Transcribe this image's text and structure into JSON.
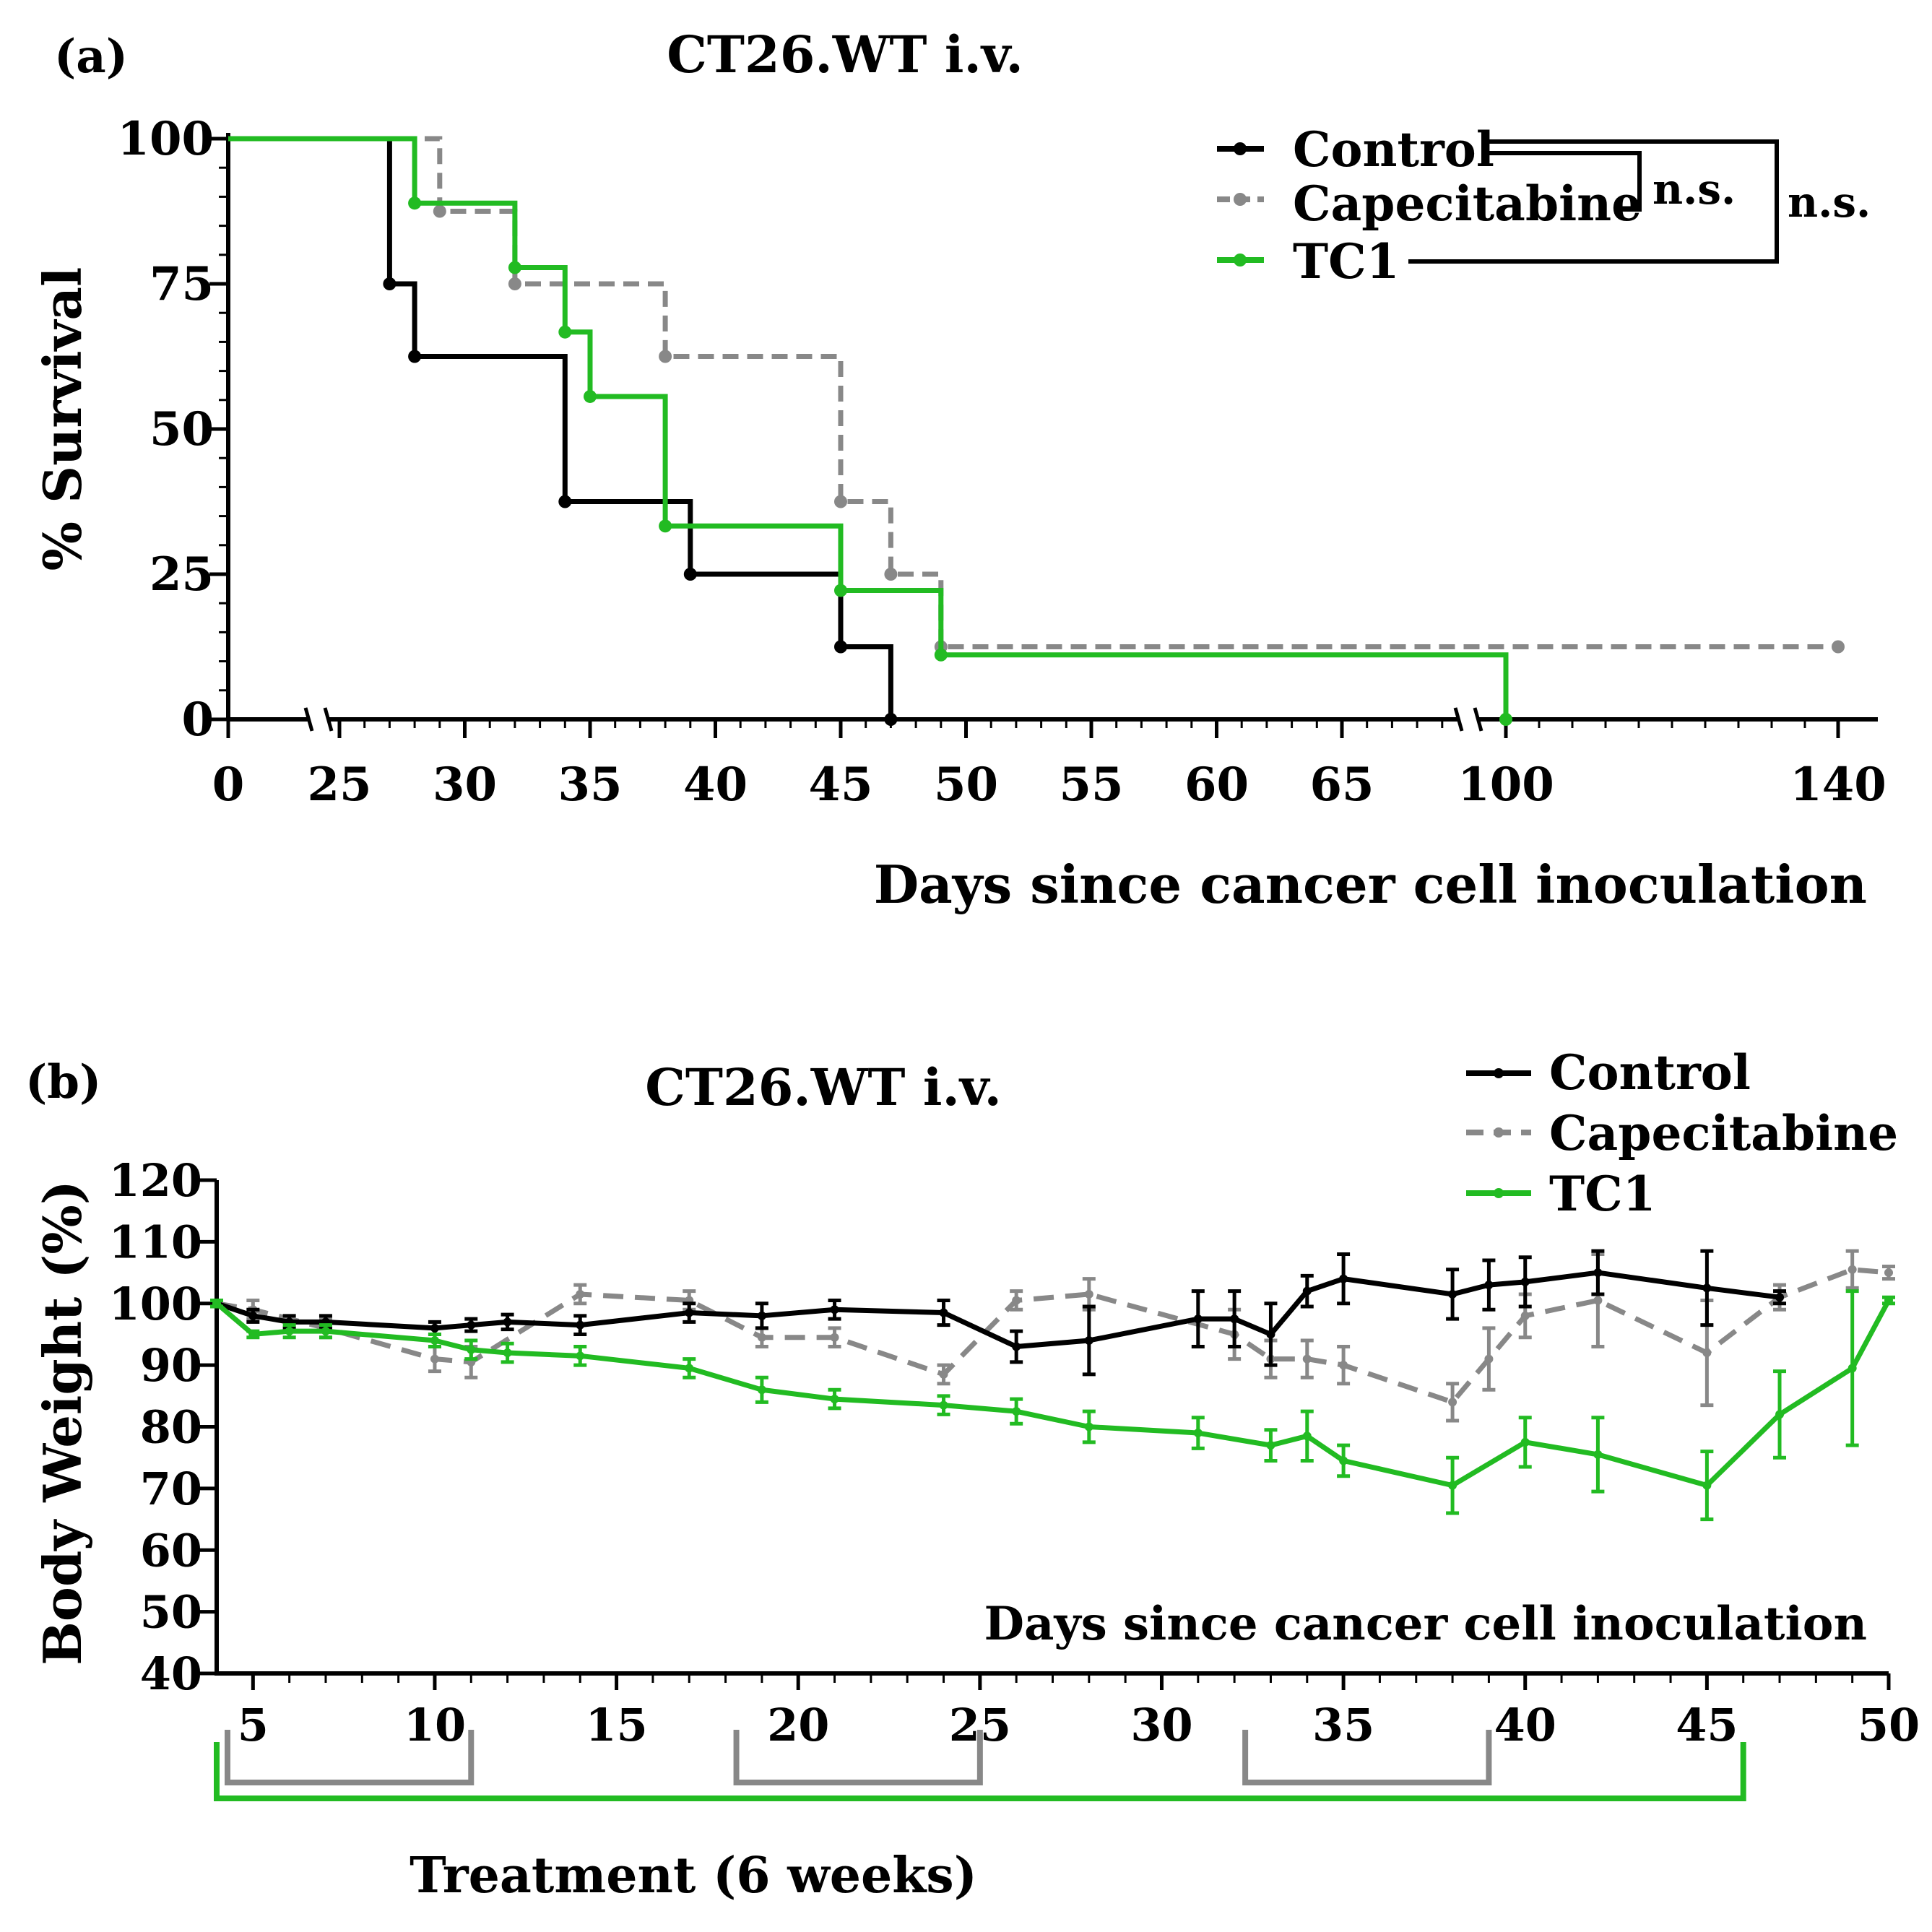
{
  "colors": {
    "control": "#000000",
    "capecitabine": "#888888",
    "tc1": "#22bb22",
    "treatment_capecitabine": "#888888",
    "treatment_tc1": "#22bb22"
  },
  "chart_data": [
    {
      "type": "line",
      "panel_label": "(a)",
      "title": "CT26.WT i.v.",
      "xlabel": "Days since cancer cell inoculation",
      "ylabel": "% Survival",
      "ylim": [
        0,
        100
      ],
      "yticks": [
        "0",
        "25",
        "50",
        "75",
        "100"
      ],
      "xticks": [
        "0",
        "25",
        "30",
        "35",
        "40",
        "45",
        "50",
        "55",
        "60",
        "65",
        "100",
        "140"
      ],
      "axis_breaks": "x axis broken between 0 and 25, and between 65 and 100",
      "legend": [
        "Control",
        "Capecitabine",
        "TC1"
      ],
      "significance": [
        {
          "between": [
            "Control",
            "Capecitabine"
          ],
          "label": "n.s."
        },
        {
          "between": [
            "Control",
            "TC1"
          ],
          "label": "n.s."
        }
      ],
      "series": [
        {
          "name": "Control",
          "step": [
            [
              0,
              100
            ],
            [
              27,
              75
            ],
            [
              28,
              62.5
            ],
            [
              34,
              37.5
            ],
            [
              39,
              25
            ],
            [
              45,
              12.5
            ],
            [
              47,
              0
            ]
          ]
        },
        {
          "name": "Capecitabine",
          "step": [
            [
              0,
              100
            ],
            [
              29,
              87.5
            ],
            [
              32,
              75
            ],
            [
              38,
              62.5
            ],
            [
              45,
              37.5
            ],
            [
              47,
              25
            ],
            [
              49,
              12.5
            ],
            [
              140,
              12.5
            ]
          ]
        },
        {
          "name": "TC1",
          "step": [
            [
              0,
              100
            ],
            [
              28,
              88.9
            ],
            [
              32,
              77.8
            ],
            [
              34,
              66.7
            ],
            [
              35,
              55.6
            ],
            [
              38,
              33.3
            ],
            [
              45,
              22.2
            ],
            [
              49,
              11.1
            ],
            [
              98,
              0
            ]
          ]
        }
      ]
    },
    {
      "type": "line",
      "panel_label": "(b)",
      "title": "CT26.WT i.v.",
      "xlabel": "Days since cancer cell inoculation",
      "ylabel": "Body Weight (%)",
      "xlim": [
        4,
        50
      ],
      "ylim": [
        40,
        120
      ],
      "xticks": [
        "5",
        "10",
        "15",
        "20",
        "25",
        "30",
        "35",
        "40",
        "45",
        "50"
      ],
      "yticks": [
        "40",
        "50",
        "60",
        "70",
        "80",
        "90",
        "100",
        "110",
        "120"
      ],
      "legend": [
        "Control",
        "Capecitabine",
        "TC1"
      ],
      "series": [
        {
          "name": "Control",
          "x": [
            4,
            5,
            6,
            7,
            10,
            11,
            12,
            14,
            17,
            19,
            21,
            24,
            26,
            28,
            31,
            32,
            33,
            34,
            35,
            38,
            39,
            40,
            42,
            45,
            47
          ],
          "y": [
            100,
            98,
            97,
            97,
            96,
            96.5,
            97,
            96.5,
            98.5,
            98,
            99,
            98.5,
            93,
            94,
            97.5,
            97.5,
            95,
            102,
            104,
            101.5,
            103,
            103.5,
            105,
            102.5,
            101
          ],
          "err": [
            0.5,
            1,
            1,
            1,
            1,
            1,
            1.2,
            1.5,
            1.5,
            2,
            1.5,
            2,
            2.5,
            5.5,
            4.5,
            4.5,
            5,
            2.5,
            4,
            4,
            4,
            4,
            3.5,
            6,
            1
          ]
        },
        {
          "name": "Capecitabine",
          "x": [
            4,
            5,
            7,
            10,
            11,
            14,
            17,
            19,
            21,
            24,
            26,
            28,
            32,
            33,
            34,
            35,
            38,
            39,
            40,
            42,
            45,
            47,
            49,
            50
          ],
          "y": [
            100,
            99,
            96,
            91,
            90.5,
            101.5,
            100.5,
            94.5,
            94.5,
            88.5,
            100.5,
            101.5,
            95,
            91,
            91,
            90,
            84,
            91,
            98,
            100.5,
            92,
            101,
            105.5,
            105
          ],
          "err": [
            0.5,
            1.5,
            1.5,
            2,
            2.5,
            1.5,
            1.5,
            1.5,
            1.5,
            1.5,
            1.5,
            2.5,
            4,
            3,
            3,
            3,
            3,
            5,
            3.5,
            7.5,
            8.5,
            2,
            3,
            1
          ]
        },
        {
          "name": "TC1",
          "x": [
            4,
            5,
            6,
            7,
            10,
            11,
            12,
            14,
            17,
            19,
            21,
            24,
            26,
            28,
            31,
            33,
            34,
            35,
            38,
            40,
            42,
            45,
            47,
            49,
            50
          ],
          "y": [
            100,
            95,
            95.5,
            95.5,
            94,
            92.5,
            92,
            91.5,
            89.5,
            86,
            84.5,
            83.5,
            82.5,
            80,
            79,
            77,
            78.5,
            74.5,
            70.5,
            77.5,
            75.5,
            70.5,
            82,
            89.5,
            100.5
          ],
          "err": [
            0.5,
            0.5,
            1,
            1,
            1,
            1.5,
            1.5,
            1.5,
            1.5,
            2,
            1.5,
            1.5,
            2,
            2.5,
            2.5,
            2.5,
            4,
            2.5,
            4.5,
            4,
            6,
            5.5,
            7,
            12.5,
            0.5
          ]
        }
      ],
      "treatment_label": "Treatment (6 weeks)",
      "treatment_periods": [
        {
          "agent": "Capecitabine",
          "days": [
            [
              4,
              11
            ],
            [
              18,
              25
            ],
            [
              32,
              39
            ]
          ]
        },
        {
          "agent": "TC1",
          "days": [
            [
              4,
              46
            ]
          ]
        }
      ]
    }
  ]
}
